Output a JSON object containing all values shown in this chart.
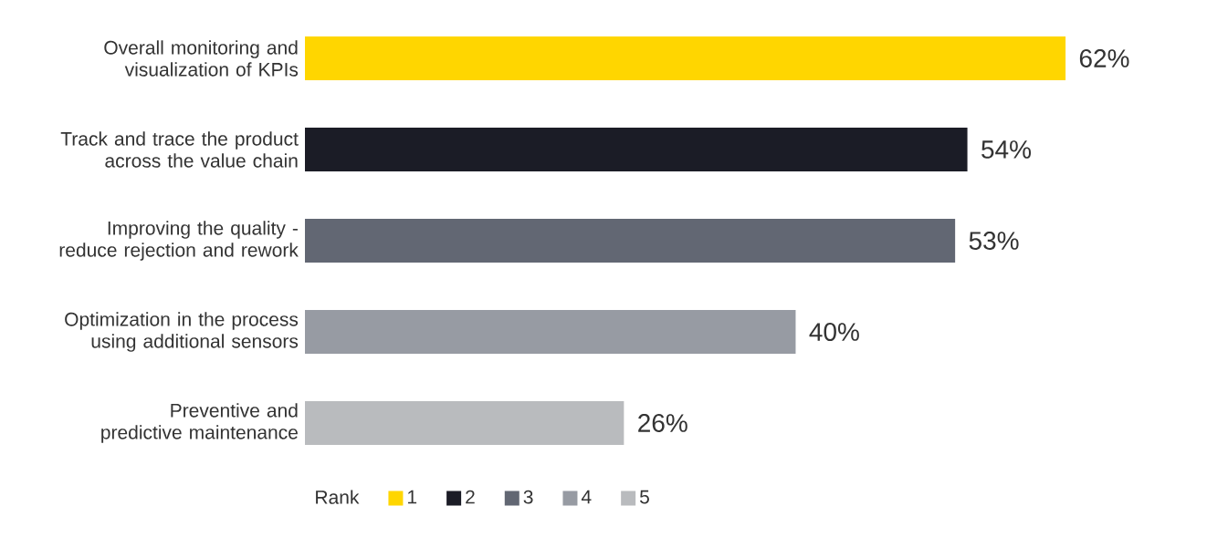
{
  "chart_data": {
    "type": "bar",
    "orientation": "horizontal",
    "legend_title": "Rank",
    "legend": "bottom",
    "categories": [
      "Overall monitoring and visualization of KPIs",
      "Track and trace the product across the value chain",
      "Improving the quality - reduce rejection and rework",
      "Optimization in the process using additional sensors",
      "Preventive and predictive maintenance"
    ],
    "series": [
      {
        "name": "1",
        "color": "#ffd600",
        "values": [
          62,
          null,
          null,
          null,
          null
        ],
        "value_labels": [
          "62%",
          null,
          null,
          null,
          null
        ]
      },
      {
        "name": "2",
        "color": "#1b1c26",
        "values": [
          null,
          54,
          null,
          null,
          null
        ],
        "value_labels": [
          null,
          "54%",
          null,
          null,
          null
        ]
      },
      {
        "name": "3",
        "color": "#626773",
        "values": [
          null,
          null,
          53,
          null,
          null
        ],
        "value_labels": [
          null,
          null,
          "53%",
          null,
          null
        ]
      },
      {
        "name": "4",
        "color": "#979ba3",
        "values": [
          null,
          null,
          null,
          40,
          null
        ],
        "value_labels": [
          null,
          null,
          null,
          "40%",
          null
        ]
      },
      {
        "name": "5",
        "color": "#b9bbbe",
        "values": [
          null,
          null,
          null,
          null,
          26
        ],
        "value_labels": [
          null,
          null,
          null,
          null,
          "26%"
        ]
      }
    ]
  }
}
